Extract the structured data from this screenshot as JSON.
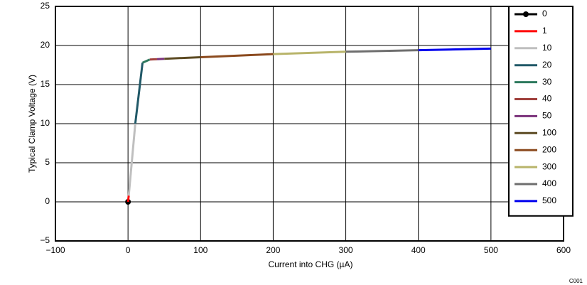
{
  "chart_data": {
    "type": "line",
    "xlabel": "Current into CHG (µA)",
    "ylabel": "Typical Clamp Voltage (V)",
    "note": "C001",
    "xlim": [
      -100,
      600
    ],
    "xticks": [
      {
        "value": -100,
        "label": "−100"
      },
      0,
      100,
      200,
      300,
      400,
      500,
      600
    ],
    "ylim": [
      -5,
      25
    ],
    "yticks": [
      {
        "value": -5,
        "label": "−5"
      },
      0,
      5,
      10,
      15,
      20,
      25
    ],
    "grid": true,
    "legend": "upper right",
    "series": [
      {
        "name": "0",
        "color": "#000000",
        "marker": true,
        "x": [
          0
        ],
        "y": [
          0
        ]
      },
      {
        "name": "1",
        "color": "#ff0000",
        "x": [
          0,
          1
        ],
        "y": [
          0,
          0.8
        ]
      },
      {
        "name": "10",
        "color": "#bfbfbf",
        "x": [
          1,
          10
        ],
        "y": [
          0.8,
          10
        ]
      },
      {
        "name": "20",
        "color": "#215968",
        "x": [
          10,
          20
        ],
        "y": [
          10,
          17.8
        ]
      },
      {
        "name": "30",
        "color": "#2e7a5e",
        "x": [
          20,
          30
        ],
        "y": [
          17.8,
          18.2
        ]
      },
      {
        "name": "40",
        "color": "#a0403c",
        "x": [
          30,
          40
        ],
        "y": [
          18.2,
          18.25
        ]
      },
      {
        "name": "50",
        "color": "#7a307a",
        "x": [
          40,
          50
        ],
        "y": [
          18.25,
          18.3
        ]
      },
      {
        "name": "100",
        "color": "#5c4a22",
        "x": [
          50,
          100
        ],
        "y": [
          18.3,
          18.5
        ]
      },
      {
        "name": "200",
        "color": "#8b4a1e",
        "x": [
          100,
          200
        ],
        "y": [
          18.5,
          18.9
        ]
      },
      {
        "name": "300",
        "color": "#b8b46a",
        "x": [
          200,
          300
        ],
        "y": [
          18.9,
          19.2
        ]
      },
      {
        "name": "400",
        "color": "#6e6e6e",
        "x": [
          300,
          400
        ],
        "y": [
          19.2,
          19.4
        ]
      },
      {
        "name": "500",
        "color": "#0000ee",
        "x": [
          400,
          500
        ],
        "y": [
          19.4,
          19.6
        ]
      }
    ]
  }
}
